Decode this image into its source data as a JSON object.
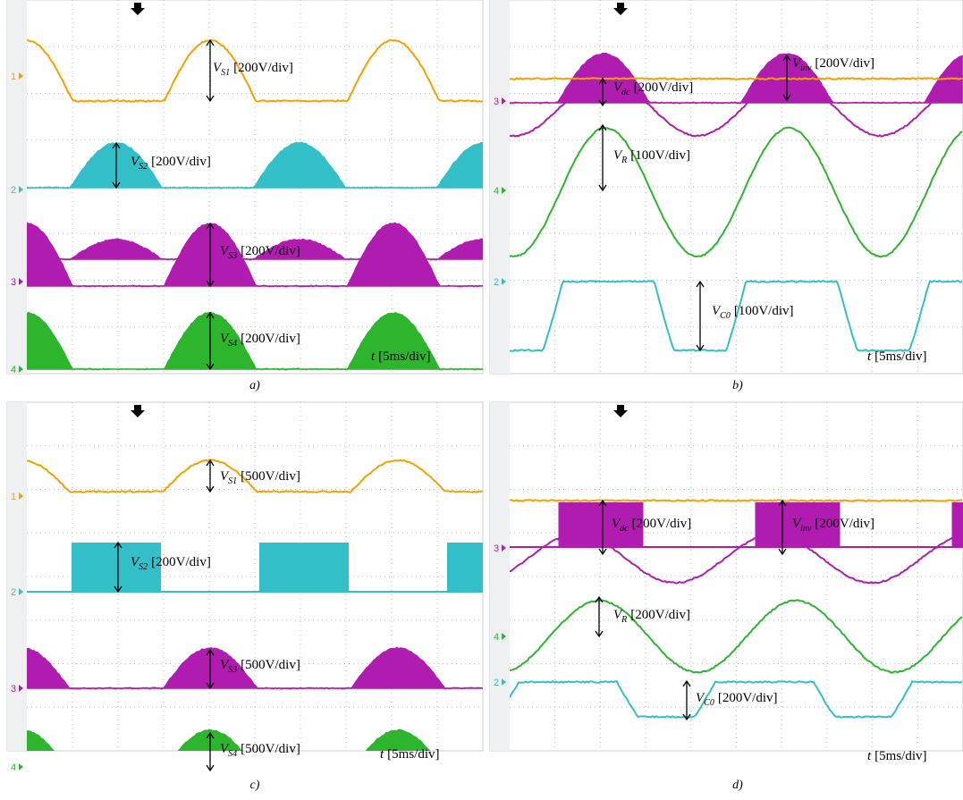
{
  "panels": [
    {
      "caption": "a)",
      "channels": [
        "1",
        "2",
        "3",
        "4"
      ],
      "labels": [
        {
          "symbol": "V",
          "subscript": "S1",
          "scale": "[200V/div]"
        },
        {
          "symbol": "V",
          "subscript": "S2",
          "scale": "[200V/div]"
        },
        {
          "symbol": "V",
          "subscript": "S3",
          "scale": "[200V/div]"
        },
        {
          "symbol": "V",
          "subscript": "S4",
          "scale": "[200V/div]"
        }
      ],
      "time": {
        "symbol": "t",
        "scale": "[5ms/div]"
      }
    },
    {
      "caption": "b)",
      "channels": [
        "3",
        "4",
        "2"
      ],
      "labels": [
        {
          "symbol": "V",
          "subscript": "inv",
          "scale": "[200V/div]"
        },
        {
          "symbol": "V",
          "subscript": "dc",
          "scale": "[200V/div]"
        },
        {
          "symbol": "V",
          "subscript": "R",
          "scale": "[100V/div]"
        },
        {
          "symbol": "V",
          "subscript": "C0",
          "scale": "[100V/div]"
        }
      ],
      "time": {
        "symbol": "t",
        "scale": "[5ms/div]"
      }
    },
    {
      "caption": "c)",
      "channels": [
        "1",
        "2",
        "3",
        "4"
      ],
      "labels": [
        {
          "symbol": "V",
          "subscript": "S1",
          "scale": "[500V/div]"
        },
        {
          "symbol": "V",
          "subscript": "S2",
          "scale": "[200V/div]"
        },
        {
          "symbol": "V",
          "subscript": "S3",
          "scale": "[500V/div]"
        },
        {
          "symbol": "V",
          "subscript": "S4",
          "scale": "[500V/div]"
        }
      ],
      "time": {
        "symbol": "t",
        "scale": "[5ms/div]"
      }
    },
    {
      "caption": "d)",
      "channels": [
        "3",
        "4",
        "2"
      ],
      "labels": [
        {
          "symbol": "V",
          "subscript": "dc",
          "scale": "[200V/div]"
        },
        {
          "symbol": "V",
          "subscript": "inv",
          "scale": "[200V/div]"
        },
        {
          "symbol": "V",
          "subscript": "R",
          "scale": "[200V/div]"
        },
        {
          "symbol": "V",
          "subscript": "C0",
          "scale": "[200V/div]"
        }
      ],
      "time": {
        "symbol": "t",
        "scale": "[5ms/div]"
      }
    }
  ]
}
